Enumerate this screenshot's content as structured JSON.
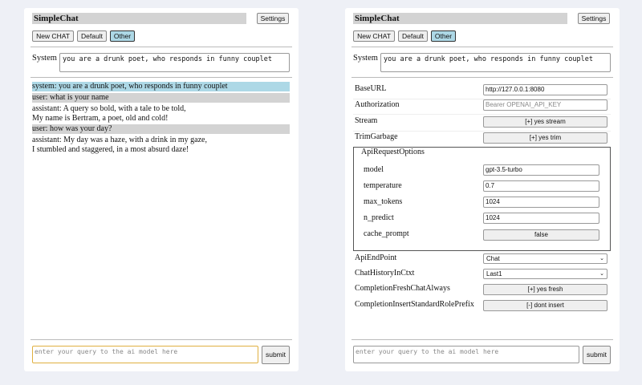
{
  "app": {
    "title": "SimpleChat",
    "settings_label": "Settings"
  },
  "chat_buttons": [
    "New CHAT",
    "Default",
    "Other"
  ],
  "selected_chat": "Other",
  "system": {
    "label": "System",
    "value": "you are a drunk poet, who responds in funny couplet"
  },
  "messages": [
    {
      "role": "system",
      "text": "system: you are a drunk poet, who responds in funny couplet"
    },
    {
      "role": "user",
      "text": "user: what is your name"
    },
    {
      "role": "assistant",
      "lines": [
        "assistant: A query so bold, with a tale to be told,",
        "My name is Bertram, a poet, old and cold!"
      ]
    },
    {
      "role": "user",
      "text": "user: how was your day?"
    },
    {
      "role": "assistant",
      "lines": [
        "assistant: My day was a haze, with a drink in my gaze,",
        "I stumbled and staggered, in a most absurd daze!"
      ]
    }
  ],
  "query": {
    "placeholder": "enter your query to the ai model here",
    "submit_label": "submit"
  },
  "settings": {
    "base_url": {
      "label": "BaseURL",
      "value": "http://127.0.0.1:8080"
    },
    "authorization": {
      "label": "Authorization",
      "placeholder": "Bearer OPENAI_API_KEY"
    },
    "stream": {
      "label": "Stream",
      "value": "[+] yes stream"
    },
    "trim_garbage": {
      "label": "TrimGarbage",
      "value": "[+] yes trim"
    },
    "api_request_options": {
      "legend": "ApiRequestOptions",
      "model": {
        "label": "model",
        "value": "gpt-3.5-turbo"
      },
      "temperature": {
        "label": "temperature",
        "value": "0.7"
      },
      "max_tokens": {
        "label": "max_tokens",
        "value": "1024"
      },
      "n_predict": {
        "label": "n_predict",
        "value": "1024"
      },
      "cache_prompt": {
        "label": "cache_prompt",
        "value": "false"
      }
    },
    "api_endpoint": {
      "label": "ApiEndPoint",
      "value": "Chat"
    },
    "chat_history": {
      "label": "ChatHistoryInCtxt",
      "value": "Last1"
    },
    "completion_fresh": {
      "label": "CompletionFreshChatAlways",
      "value": "[+] yes fresh"
    },
    "completion_insert": {
      "label": "CompletionInsertStandardRolePrefix",
      "value": "[-] dont insert"
    }
  },
  "colors": {
    "system_msg": "#add8e6",
    "user_msg": "#d3d3d3",
    "selected_button": "#add8e6",
    "focus_border": "#e0b040"
  }
}
